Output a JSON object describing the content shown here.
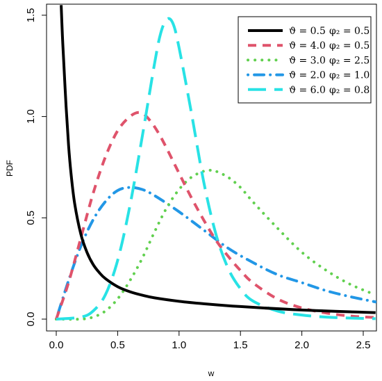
{
  "chart_data": {
    "type": "line",
    "title": "",
    "xlabel": "w",
    "ylabel": "PDF",
    "xlim": [
      0,
      2.6
    ],
    "ylim": [
      0,
      1.55
    ],
    "x_ticks": [
      "0.0",
      "0.5",
      "1.0",
      "1.5",
      "2.0",
      "2.5"
    ],
    "y_ticks": [
      "0.0",
      "0.5",
      "1.0",
      "1.5"
    ],
    "grid": false,
    "legend_position": "top-right",
    "series": [
      {
        "name": "ϑ = 0.5  φ₂ = 0.5",
        "legend": {
          "theta": "ϑ = 0.5",
          "phi": "φ₂ = 0.5"
        },
        "color": "#000000",
        "style": "solid",
        "x": [
          0.04,
          0.05,
          0.06,
          0.08,
          0.1,
          0.12,
          0.15,
          0.2,
          0.25,
          0.3,
          0.35,
          0.4,
          0.5,
          0.6,
          0.7,
          0.8,
          1.0,
          1.2,
          1.5,
          2.0,
          2.5,
          2.6
        ],
        "y": [
          1.55,
          1.4,
          1.28,
          1.05,
          0.86,
          0.72,
          0.57,
          0.42,
          0.33,
          0.27,
          0.23,
          0.2,
          0.16,
          0.135,
          0.118,
          0.105,
          0.088,
          0.076,
          0.062,
          0.045,
          0.034,
          0.032
        ]
      },
      {
        "name": "ϑ = 4.0  φ₂ = 0.5",
        "legend": {
          "theta": "ϑ = 4.0",
          "phi": "φ₂ = 0.5"
        },
        "color": "#df536b",
        "style": "dashed",
        "x": [
          0,
          0.1,
          0.2,
          0.3,
          0.4,
          0.5,
          0.6,
          0.68,
          0.75,
          0.85,
          1.0,
          1.1,
          1.2,
          1.3,
          1.4,
          1.5,
          1.6,
          1.8,
          2.0,
          2.2,
          2.4,
          2.6
        ],
        "y": [
          0,
          0.18,
          0.4,
          0.62,
          0.8,
          0.93,
          1.0,
          1.02,
          0.99,
          0.9,
          0.72,
          0.6,
          0.49,
          0.39,
          0.31,
          0.24,
          0.18,
          0.1,
          0.055,
          0.03,
          0.015,
          0.008
        ]
      },
      {
        "name": "ϑ = 3.0  φ₂ = 2.5",
        "legend": {
          "theta": "ϑ = 3.0",
          "phi": "φ₂ = 2.5"
        },
        "color": "#61d04f",
        "style": "dotted",
        "x": [
          0,
          0.2,
          0.3,
          0.4,
          0.5,
          0.6,
          0.7,
          0.8,
          0.9,
          1.0,
          1.1,
          1.2,
          1.25,
          1.3,
          1.4,
          1.5,
          1.6,
          1.8,
          2.0,
          2.2,
          2.4,
          2.6
        ],
        "y": [
          0,
          0.0,
          0.01,
          0.04,
          0.1,
          0.19,
          0.3,
          0.43,
          0.55,
          0.64,
          0.7,
          0.73,
          0.735,
          0.73,
          0.7,
          0.65,
          0.58,
          0.45,
          0.33,
          0.24,
          0.17,
          0.12
        ]
      },
      {
        "name": "ϑ = 2.0  φ₂ = 1.0",
        "legend": {
          "theta": "ϑ = 2.0",
          "phi": "φ₂ = 1.0"
        },
        "color": "#2297e6",
        "style": "dotdash",
        "x": [
          0,
          0.1,
          0.2,
          0.3,
          0.4,
          0.5,
          0.6,
          0.7,
          0.8,
          1.0,
          1.2,
          1.4,
          1.6,
          1.8,
          2.0,
          2.2,
          2.4,
          2.6
        ],
        "y": [
          0,
          0.19,
          0.36,
          0.49,
          0.58,
          0.635,
          0.65,
          0.64,
          0.61,
          0.53,
          0.44,
          0.35,
          0.28,
          0.22,
          0.18,
          0.14,
          0.11,
          0.085
        ]
      },
      {
        "name": "ϑ = 6.0  φ₂ = 0.8",
        "legend": {
          "theta": "ϑ = 6.0",
          "phi": "φ₂ = 0.8"
        },
        "color": "#28e2e5",
        "style": "longdash",
        "x": [
          0,
          0.2,
          0.3,
          0.4,
          0.5,
          0.6,
          0.7,
          0.8,
          0.85,
          0.9,
          0.95,
          1.0,
          1.1,
          1.2,
          1.3,
          1.4,
          1.5,
          1.6,
          1.8,
          2.0,
          2.2,
          2.4,
          2.6
        ],
        "y": [
          0,
          0.01,
          0.04,
          0.12,
          0.29,
          0.56,
          0.9,
          1.26,
          1.41,
          1.48,
          1.46,
          1.34,
          1.02,
          0.68,
          0.42,
          0.25,
          0.15,
          0.09,
          0.04,
          0.02,
          0.01,
          0.005,
          0.002
        ]
      }
    ]
  }
}
